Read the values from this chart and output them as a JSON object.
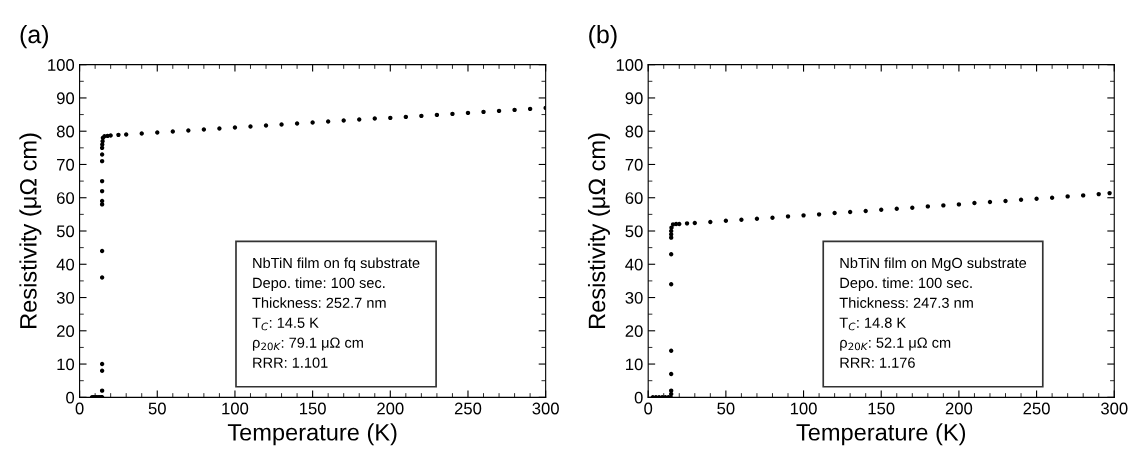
{
  "chart_data": [
    {
      "type": "scatter",
      "title": "(a)",
      "xlabel": "Temperature (K)",
      "ylabel": "Resistivity (μΩ cm)",
      "xlim": [
        0,
        300
      ],
      "ylim": [
        0,
        100
      ],
      "xticks": [
        0,
        50,
        100,
        150,
        200,
        250,
        300
      ],
      "yticks": [
        0,
        10,
        20,
        30,
        40,
        50,
        60,
        70,
        80,
        90,
        100
      ],
      "marker": "circle",
      "grid": false,
      "legend": false,
      "series": [
        {
          "color": "#000000",
          "x": [
            8,
            9,
            10,
            11,
            12,
            13,
            14,
            14.5,
            14.5,
            14.5,
            14.5,
            14.5,
            14.5,
            14.5,
            14.5,
            14.5,
            14.5,
            14.5,
            14.5,
            14.5,
            14.6,
            14.8,
            15,
            16,
            18,
            20,
            25,
            30,
            40,
            50,
            60,
            70,
            80,
            90,
            100,
            110,
            120,
            130,
            140,
            150,
            160,
            170,
            180,
            190,
            200,
            210,
            220,
            230,
            240,
            250,
            260,
            270,
            280,
            290,
            300
          ],
          "values": [
            0,
            0,
            0,
            0,
            0,
            0,
            0,
            0,
            2,
            8,
            10,
            36,
            44,
            58,
            59,
            62,
            65,
            71,
            73,
            75,
            76,
            77,
            78,
            78.5,
            78.6,
            78.7,
            78.9,
            79.0,
            79.3,
            79.6,
            79.9,
            80.2,
            80.5,
            80.8,
            81.1,
            81.4,
            81.7,
            82.0,
            82.3,
            82.6,
            82.9,
            83.2,
            83.5,
            83.8,
            84.0,
            84.3,
            84.6,
            84.9,
            85.2,
            85.5,
            85.8,
            86.1,
            86.4,
            86.7,
            87.0
          ]
        }
      ],
      "annotations": [
        "NbTiN film on fq substrate\nDepo. time: 100 sec.\nThickness: 252.7 nm\nT$_{C}$: 14.5 K\nρ$_{20K}$: 79.1 μΩ cm\nRRR: 1.101"
      ]
    },
    {
      "type": "scatter",
      "title": "(b)",
      "xlabel": "Temperature (K)",
      "ylabel": "Resistivity (μΩ cm)",
      "xlim": [
        0,
        300
      ],
      "ylim": [
        0,
        100
      ],
      "xticks": [
        0,
        50,
        100,
        150,
        200,
        250,
        300
      ],
      "yticks": [
        0,
        10,
        20,
        30,
        40,
        50,
        60,
        70,
        80,
        90,
        100
      ],
      "marker": "circle",
      "grid": false,
      "legend": false,
      "series": [
        {
          "color": "#000000",
          "x": [
            3,
            5,
            7,
            9,
            11,
            13,
            14.5,
            14.8,
            14.8,
            14.8,
            14.8,
            14.8,
            14.8,
            14.8,
            14.8,
            14.8,
            15,
            15.5,
            16,
            18,
            20,
            25,
            30,
            40,
            50,
            60,
            70,
            80,
            90,
            100,
            110,
            120,
            130,
            140,
            150,
            160,
            170,
            180,
            190,
            200,
            210,
            220,
            230,
            240,
            250,
            260,
            270,
            280,
            290,
            297
          ],
          "values": [
            0,
            0,
            0,
            0,
            0,
            0,
            0,
            1,
            2,
            7,
            14,
            34,
            43,
            48,
            49,
            50,
            51,
            null,
            52.0,
            52.1,
            52.1,
            52.3,
            52.4,
            52.7,
            53.1,
            53.4,
            53.7,
            54.0,
            54.4,
            54.7,
            55.0,
            55.4,
            55.7,
            56.0,
            56.4,
            56.7,
            57.0,
            57.4,
            57.7,
            58.0,
            58.4,
            58.7,
            59.0,
            59.4,
            59.7,
            60.0,
            60.4,
            60.7,
            61.1,
            61.4
          ]
        }
      ],
      "annotations": [
        "NbTiN film on MgO substrate\nDepo. time: 100 sec.\nThickness: 247.3 nm\nT$_{C}$: 14.8 K\nρ$_{20K}$: 52.1 μΩ cm\nRRR: 1.176"
      ]
    }
  ]
}
